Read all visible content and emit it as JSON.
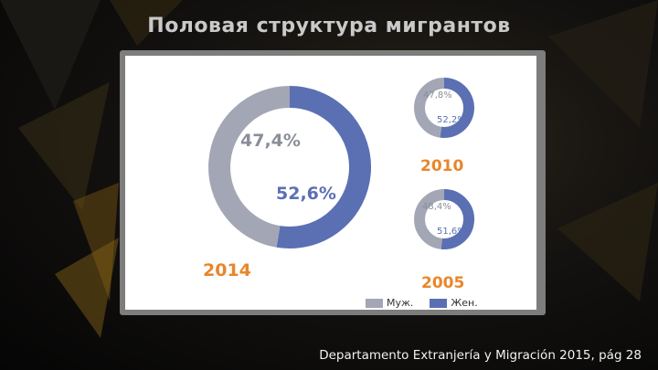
{
  "title": "Половая структура мигрантов",
  "source": "Departamento Extranjería y Migración 2015, pág 28",
  "colors": {
    "male": "#a3a6b4",
    "female": "#5b70b3",
    "year_label": "#e9862a",
    "pct_male": "#8b8e9a",
    "pct_female": "#5b70b3"
  },
  "legend": [
    {
      "label": "Муж.",
      "color": "#a3a6b4"
    },
    {
      "label": "Жен.",
      "color": "#5b70b3"
    }
  ],
  "chart_data": [
    {
      "type": "pie",
      "year": "2014",
      "slices": [
        {
          "name": "Муж.",
          "value": 47.4,
          "label": "47,4%"
        },
        {
          "name": "Жен.",
          "value": 52.6,
          "label": "52,6%"
        }
      ]
    },
    {
      "type": "pie",
      "year": "2010",
      "slices": [
        {
          "name": "Муж.",
          "value": 47.8,
          "label": "47,8%"
        },
        {
          "name": "Жен.",
          "value": 52.2,
          "label": "52,2%"
        }
      ]
    },
    {
      "type": "pie",
      "year": "2005",
      "slices": [
        {
          "name": "Муж.",
          "value": 48.4,
          "label": "48,4%"
        },
        {
          "name": "Жен.",
          "value": 51.6,
          "label": "51,6%"
        }
      ]
    }
  ]
}
